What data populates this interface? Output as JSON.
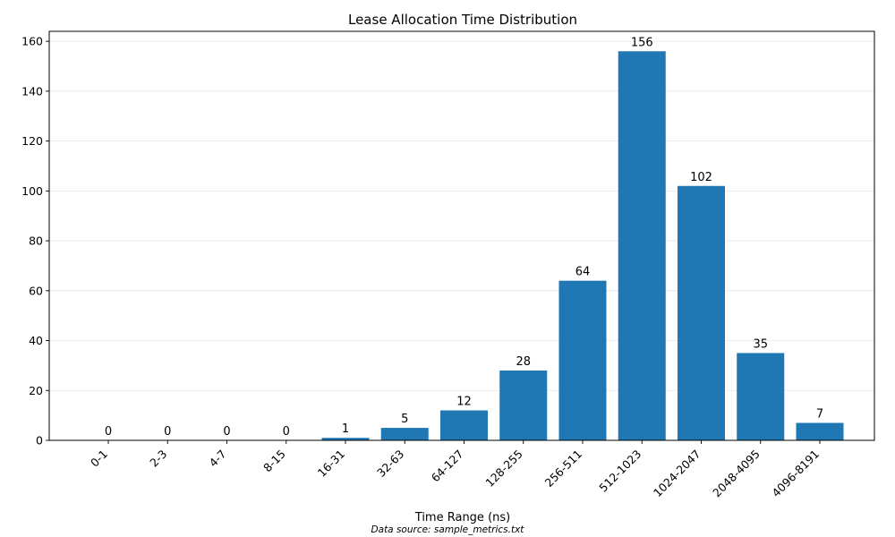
{
  "chart_data": {
    "type": "bar",
    "title": "Lease Allocation Time Distribution",
    "xlabel": "Time Range (ns)",
    "ylabel": "",
    "ylim": [
      0,
      164
    ],
    "yticks": [
      0,
      20,
      40,
      60,
      80,
      100,
      120,
      140,
      160
    ],
    "grid": "y-only",
    "categories": [
      "0-1",
      "2-3",
      "4-7",
      "8-15",
      "16-31",
      "32-63",
      "64-127",
      "128-255",
      "256-511",
      "512-1023",
      "1024-2047",
      "2048-4095",
      "4096-8191"
    ],
    "values": [
      0,
      0,
      0,
      0,
      1,
      5,
      12,
      28,
      64,
      156,
      102,
      35,
      7
    ],
    "bar_color": "#1f77b4",
    "footnote": "Data source: sample_metrics.txt"
  }
}
